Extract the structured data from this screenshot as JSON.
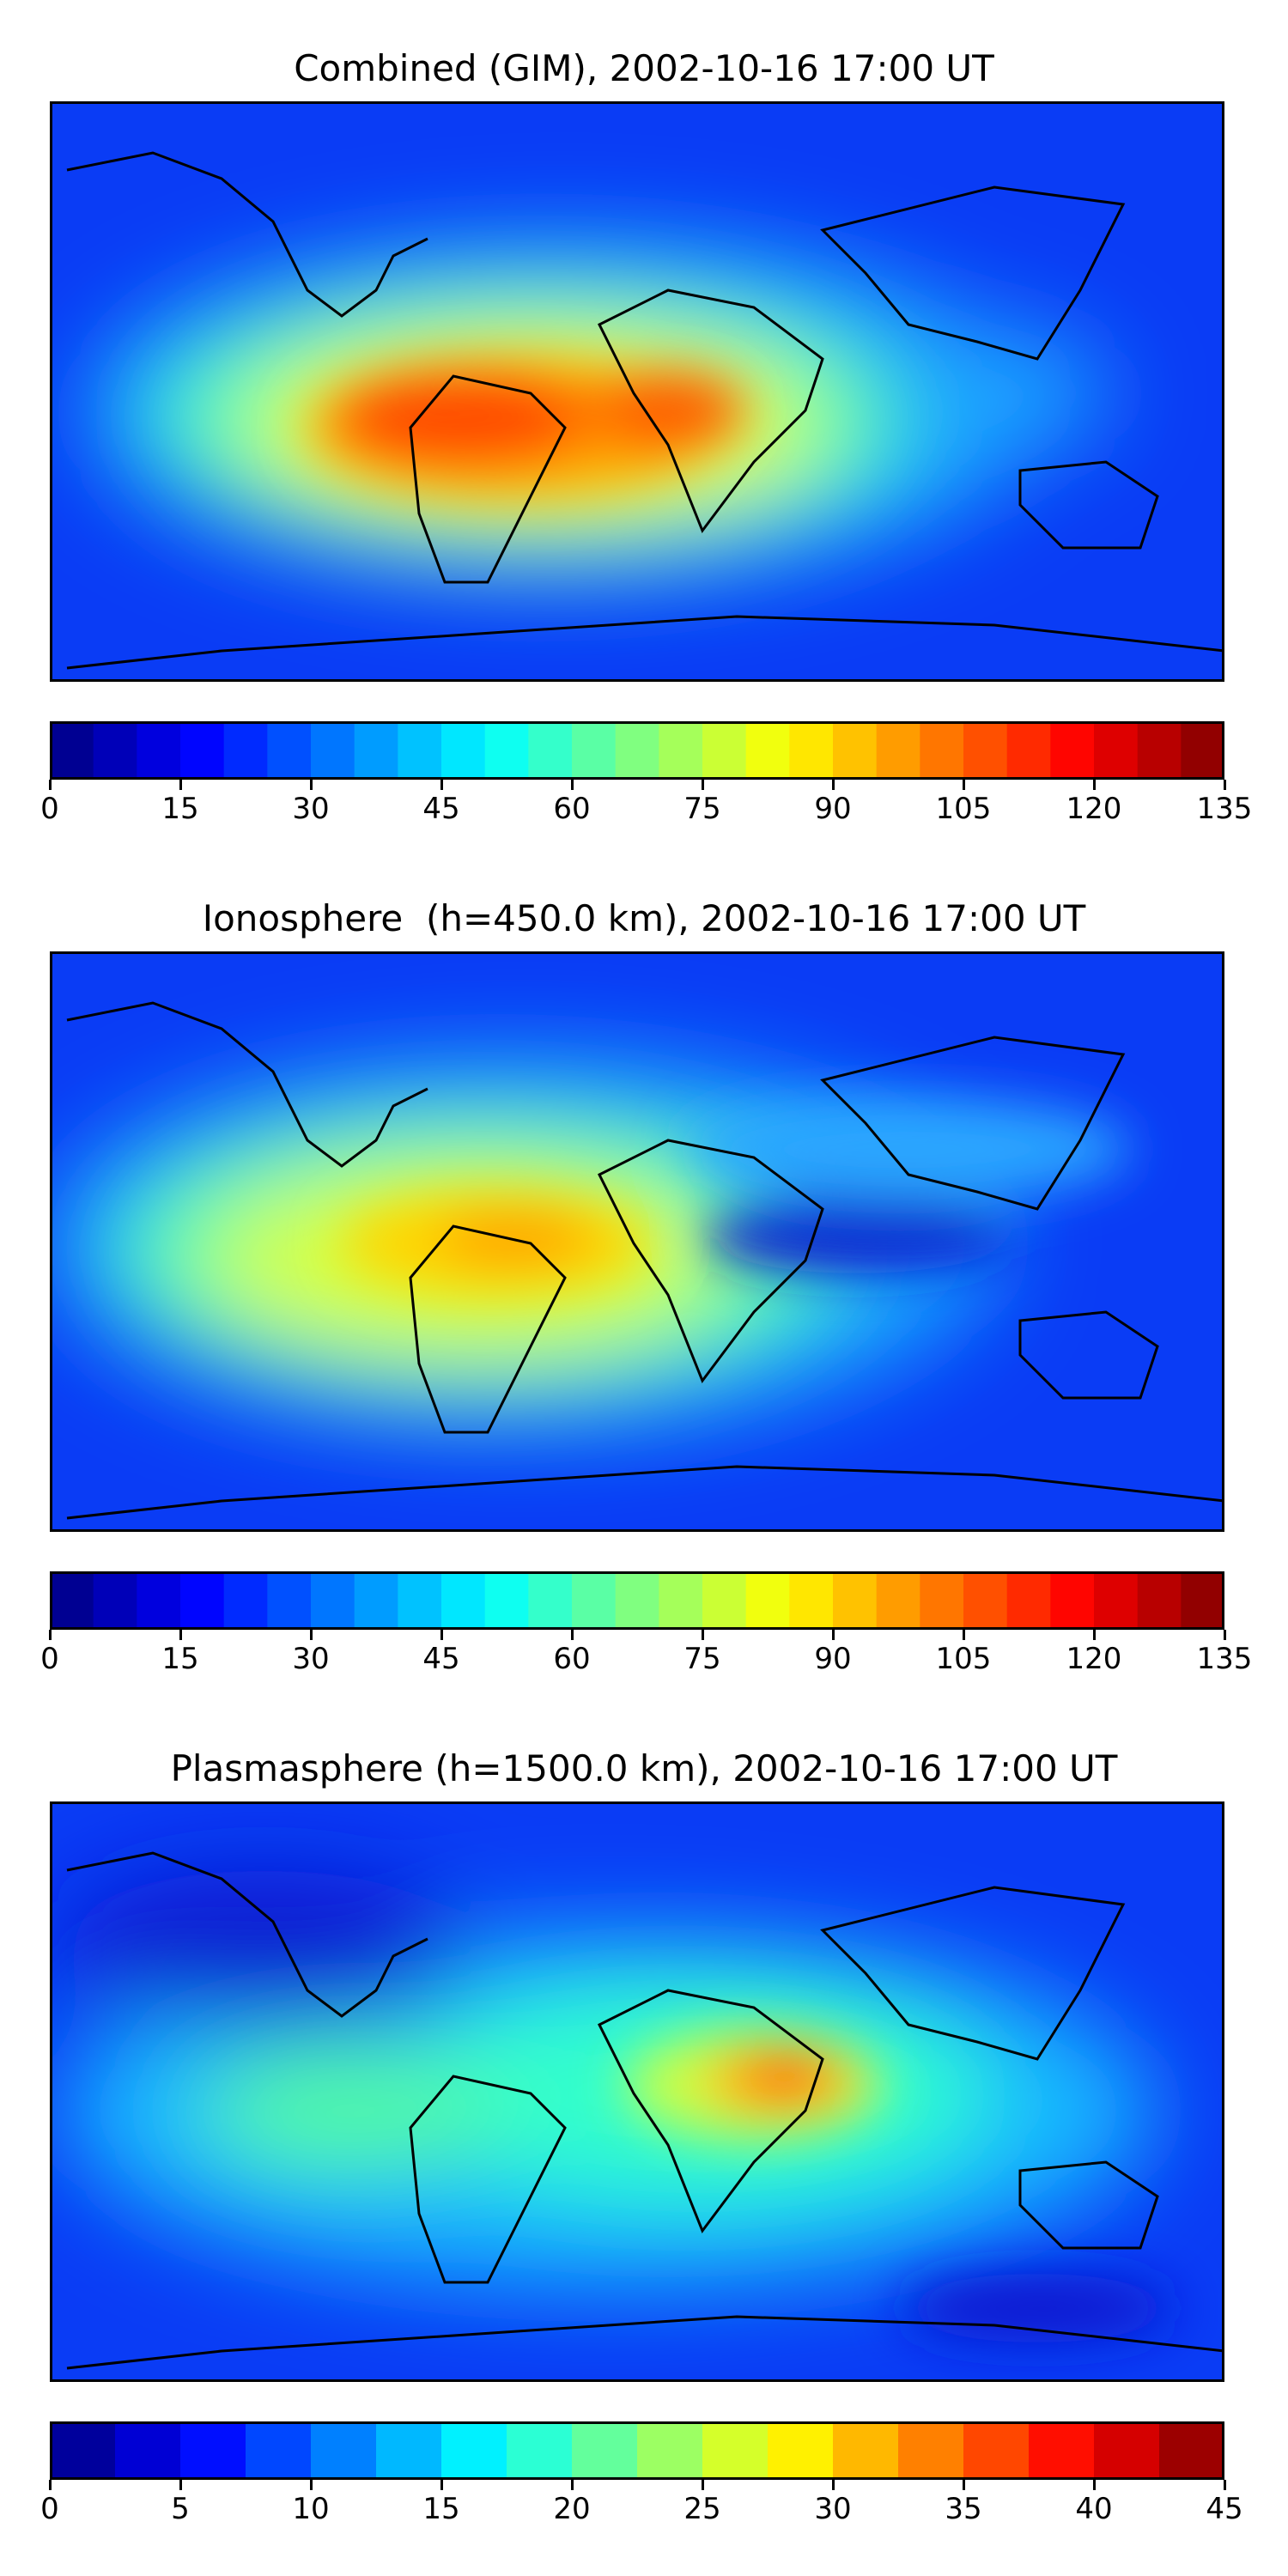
{
  "panels": [
    {
      "title": "Combined (GIM), 2002-10-16 17:00 UT",
      "colorbar": {
        "min": 0,
        "max": 135,
        "levels": 27,
        "ticks": [
          "0",
          "15",
          "30",
          "45",
          "60",
          "75",
          "90",
          "105",
          "120",
          "135"
        ]
      },
      "field_features": [
        {
          "name": "south-america-crest",
          "lon": -55,
          "lat": -8,
          "value": 120
        },
        {
          "name": "africa-crest",
          "lon": 0,
          "lat": -10,
          "value": 110
        },
        {
          "name": "indian-band",
          "lon": 75,
          "lat": 2,
          "value": 50
        }
      ]
    },
    {
      "title": "Ionosphere  (h=450.0 km), 2002-10-16 17:00 UT",
      "colorbar": {
        "min": 0,
        "max": 135,
        "levels": 27,
        "ticks": [
          "0",
          "15",
          "30",
          "45",
          "60",
          "75",
          "90",
          "105",
          "120",
          "135"
        ]
      },
      "field_features": [
        {
          "name": "south-america-crest",
          "lon": -45,
          "lat": -2,
          "value": 95
        },
        {
          "name": "indian-ocean-trough",
          "lon": 40,
          "lat": 5,
          "value": 20
        }
      ]
    },
    {
      "title": "Plasmasphere (h=1500.0 km), 2002-10-16 17:00 UT",
      "colorbar": {
        "min": 0,
        "max": 45,
        "levels": 18,
        "ticks": [
          "0",
          "5",
          "10",
          "15",
          "20",
          "25",
          "30",
          "35",
          "40",
          "45"
        ]
      },
      "field_features": [
        {
          "name": "east-africa-max",
          "lon": 40,
          "lat": 8,
          "value": 38
        },
        {
          "name": "north-america-min",
          "lon": -80,
          "lat": 45,
          "value": 3
        }
      ]
    }
  ],
  "colormap": "jet",
  "colors": {
    "frame": "#000000",
    "coastline": "#000000"
  }
}
